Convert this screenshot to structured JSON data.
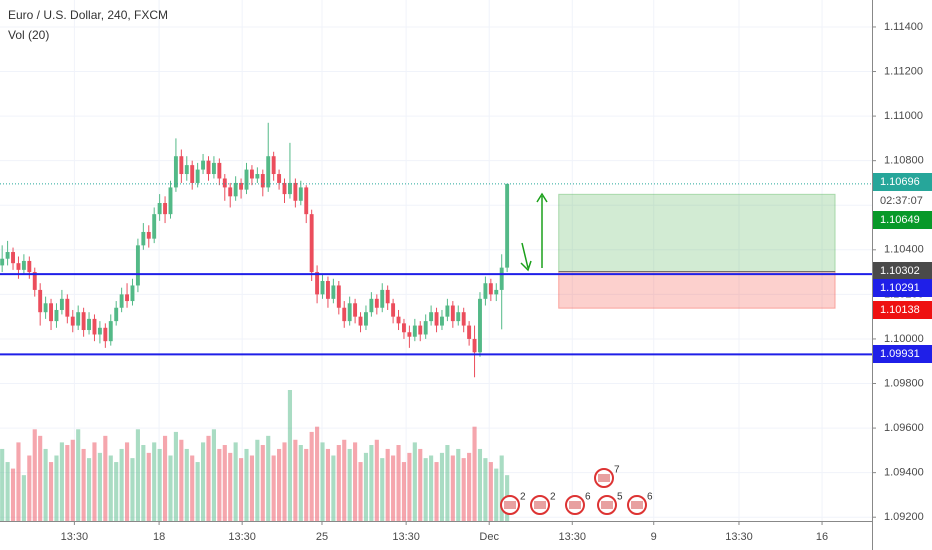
{
  "chart_data": {
    "type": "candlestick",
    "title": "Euro / U.S. Dollar, 240, FXCM",
    "subtitle": "Vol (20)",
    "up_color": "#53b987",
    "down_color": "#eb4d5c",
    "xlim": [
      -0.4,
      160.2
    ],
    "ylim": [
      1.09183,
      1.11521
    ],
    "vlim": [
      0,
      100
    ],
    "grid": true,
    "xticks": [
      {
        "value": 13.3,
        "label": "13:30"
      },
      {
        "value": 28.9,
        "label": "18"
      },
      {
        "value": 44.2,
        "label": "13:30"
      },
      {
        "value": 58.9,
        "label": "25"
      },
      {
        "value": 74.4,
        "label": "13:30"
      },
      {
        "value": 89.7,
        "label": "Dec"
      },
      {
        "value": 105,
        "label": "13:30"
      },
      {
        "value": 120,
        "label": "9"
      },
      {
        "value": 135.7,
        "label": "13:30"
      },
      {
        "value": 151,
        "label": "16"
      }
    ],
    "yticks": [
      {
        "value": 1.092,
        "label": "1.09200"
      },
      {
        "value": 1.094,
        "label": "1.09400"
      },
      {
        "value": 1.096,
        "label": "1.09600"
      },
      {
        "value": 1.098,
        "label": "1.09800"
      },
      {
        "value": 1.1,
        "label": "1.10000"
      },
      {
        "value": 1.102,
        "label": "1.10200"
      },
      {
        "value": 1.104,
        "label": "1.10400"
      },
      {
        "value": 1.106,
        "label": "1.10600"
      },
      {
        "value": 1.108,
        "label": "1.10800"
      },
      {
        "value": 1.11,
        "label": "1.11000"
      },
      {
        "value": 1.112,
        "label": "1.11200"
      },
      {
        "value": 1.114,
        "label": "1.11400"
      }
    ],
    "ohlc": [
      [
        1.1033,
        1.1042,
        1.103,
        1.1036
      ],
      [
        1.1036,
        1.1044,
        1.1033,
        1.1039
      ],
      [
        1.1039,
        1.1041,
        1.1031,
        1.1034
      ],
      [
        1.1034,
        1.1037,
        1.1027,
        1.1031
      ],
      [
        1.1031,
        1.1038,
        1.1029,
        1.1035
      ],
      [
        1.1035,
        1.1037,
        1.1027,
        1.103
      ],
      [
        1.103,
        1.1032,
        1.1019,
        1.1022
      ],
      [
        1.1022,
        1.1025,
        1.1006,
        1.1012
      ],
      [
        1.1012,
        1.1019,
        1.1009,
        1.1016
      ],
      [
        1.1016,
        1.1018,
        1.1004,
        1.1008
      ],
      [
        1.1008,
        1.1016,
        1.1005,
        1.1013
      ],
      [
        1.1013,
        1.1022,
        1.1011,
        1.1018
      ],
      [
        1.1018,
        1.102,
        1.1007,
        1.101
      ],
      [
        1.101,
        1.1013,
        1.1003,
        1.1006
      ],
      [
        1.1006,
        1.1015,
        1.1004,
        1.1012
      ],
      [
        1.1012,
        1.1014,
        1.1001,
        1.1004
      ],
      [
        1.1004,
        1.1012,
        1.1002,
        1.1009
      ],
      [
        1.1009,
        1.1011,
        1.0999,
        1.1002
      ],
      [
        1.1002,
        1.1008,
        1.0998,
        1.1005
      ],
      [
        1.1005,
        1.1007,
        1.0996,
        1.0999
      ],
      [
        1.0999,
        1.1011,
        1.0997,
        1.1008
      ],
      [
        1.1008,
        1.1017,
        1.1006,
        1.1014
      ],
      [
        1.1014,
        1.1023,
        1.1012,
        1.102
      ],
      [
        1.102,
        1.1025,
        1.1014,
        1.1017
      ],
      [
        1.1017,
        1.1027,
        1.1015,
        1.1024
      ],
      [
        1.1024,
        1.1045,
        1.1021,
        1.1042
      ],
      [
        1.1042,
        1.1052,
        1.104,
        1.1048
      ],
      [
        1.1048,
        1.1051,
        1.1041,
        1.1045
      ],
      [
        1.1045,
        1.1059,
        1.1043,
        1.1056
      ],
      [
        1.1056,
        1.1065,
        1.1053,
        1.1061
      ],
      [
        1.1061,
        1.1064,
        1.1052,
        1.1056
      ],
      [
        1.1056,
        1.1071,
        1.1054,
        1.1068
      ],
      [
        1.1068,
        1.109,
        1.1066,
        1.1082
      ],
      [
        1.1082,
        1.1085,
        1.107,
        1.1074
      ],
      [
        1.1074,
        1.1082,
        1.1071,
        1.1078
      ],
      [
        1.1078,
        1.108,
        1.1067,
        1.107
      ],
      [
        1.107,
        1.1079,
        1.1068,
        1.1076
      ],
      [
        1.1076,
        1.1083,
        1.1074,
        1.108
      ],
      [
        1.108,
        1.1082,
        1.1071,
        1.1074
      ],
      [
        1.1074,
        1.1082,
        1.1072,
        1.1079
      ],
      [
        1.1079,
        1.1081,
        1.1069,
        1.1072
      ],
      [
        1.1072,
        1.1074,
        1.1062,
        1.1068
      ],
      [
        1.1068,
        1.107,
        1.1059,
        1.1064
      ],
      [
        1.1064,
        1.1073,
        1.1062,
        1.107
      ],
      [
        1.107,
        1.1072,
        1.1063,
        1.1067
      ],
      [
        1.1067,
        1.1079,
        1.1065,
        1.1076
      ],
      [
        1.1076,
        1.1078,
        1.1069,
        1.1072
      ],
      [
        1.1072,
        1.1077,
        1.107,
        1.1074
      ],
      [
        1.1074,
        1.1076,
        1.1064,
        1.1068
      ],
      [
        1.1068,
        1.1097,
        1.1066,
        1.1082
      ],
      [
        1.1082,
        1.1084,
        1.1071,
        1.1074
      ],
      [
        1.1074,
        1.1076,
        1.1067,
        1.107
      ],
      [
        1.107,
        1.1072,
        1.1061,
        1.1065
      ],
      [
        1.1065,
        1.1088,
        1.1063,
        1.107
      ],
      [
        1.107,
        1.1072,
        1.1059,
        1.1062
      ],
      [
        1.1062,
        1.1071,
        1.106,
        1.1068
      ],
      [
        1.1068,
        1.1069,
        1.1052,
        1.1056
      ],
      [
        1.1056,
        1.1058,
        1.1026,
        1.103
      ],
      [
        1.103,
        1.1033,
        1.1016,
        1.102
      ],
      [
        1.102,
        1.1029,
        1.1018,
        1.1026
      ],
      [
        1.1026,
        1.1028,
        1.1014,
        1.1018
      ],
      [
        1.1018,
        1.1027,
        1.1016,
        1.1024
      ],
      [
        1.1024,
        1.1026,
        1.1011,
        1.1014
      ],
      [
        1.1014,
        1.1017,
        1.1005,
        1.1008
      ],
      [
        1.1008,
        1.1019,
        1.1006,
        1.1016
      ],
      [
        1.1016,
        1.1018,
        1.1007,
        1.101
      ],
      [
        1.101,
        1.1012,
        1.1003,
        1.1006
      ],
      [
        1.1006,
        1.1015,
        1.1004,
        1.1012
      ],
      [
        1.1012,
        1.1021,
        1.101,
        1.1018
      ],
      [
        1.1018,
        1.102,
        1.1011,
        1.1014
      ],
      [
        1.1014,
        1.1025,
        1.1012,
        1.1022
      ],
      [
        1.1022,
        1.1024,
        1.1013,
        1.1016
      ],
      [
        1.1016,
        1.1018,
        1.1007,
        1.101
      ],
      [
        1.101,
        1.1013,
        1.1004,
        1.1007
      ],
      [
        1.1007,
        1.1009,
        1.1,
        1.1003
      ],
      [
        1.1003,
        1.1006,
        1.0996,
        1.1001
      ],
      [
        1.1001,
        1.1009,
        1.0999,
        1.1006
      ],
      [
        1.1006,
        1.1008,
        1.0999,
        1.1002
      ],
      [
        1.1002,
        1.1011,
        1.1,
        1.1008
      ],
      [
        1.1008,
        1.1015,
        1.1006,
        1.1012
      ],
      [
        1.1012,
        1.1014,
        1.1003,
        1.1006
      ],
      [
        1.1006,
        1.1013,
        1.1004,
        1.101
      ],
      [
        1.101,
        1.1018,
        1.1008,
        1.1015
      ],
      [
        1.1015,
        1.1017,
        1.1005,
        1.1008
      ],
      [
        1.1008,
        1.1015,
        1.1006,
        1.1012
      ],
      [
        1.1012,
        1.1014,
        1.1003,
        1.1006
      ],
      [
        1.1006,
        1.1008,
        1.0997,
        1.1
      ],
      [
        1.1,
        1.1006,
        1.09828,
        1.0994
      ],
      [
        1.0994,
        1.1021,
        1.0992,
        1.1018
      ],
      [
        1.1018,
        1.1028,
        1.1015,
        1.1025
      ],
      [
        1.1025,
        1.1027,
        1.1017,
        1.102
      ],
      [
        1.102,
        1.1025,
        1.1017,
        1.1022
      ],
      [
        1.1022,
        1.1038,
        1.10043,
        1.1032
      ],
      [
        1.1032,
        1.10696,
        1.103,
        1.10696
      ]
    ],
    "volume": [
      55,
      45,
      40,
      60,
      35,
      50,
      70,
      65,
      55,
      45,
      50,
      60,
      58,
      62,
      70,
      55,
      48,
      60,
      52,
      65,
      50,
      45,
      55,
      60,
      48,
      70,
      58,
      52,
      60,
      55,
      65,
      50,
      68,
      62,
      55,
      50,
      45,
      60,
      65,
      70,
      55,
      58,
      52,
      60,
      48,
      55,
      50,
      62,
      58,
      65,
      50,
      55,
      60,
      100,
      62,
      58,
      55,
      68,
      72,
      60,
      55,
      50,
      58,
      62,
      55,
      60,
      45,
      52,
      58,
      62,
      48,
      55,
      50,
      58,
      45,
      52,
      60,
      55,
      48,
      50,
      45,
      52,
      58,
      50,
      55,
      48,
      52,
      72,
      55,
      48,
      45,
      40,
      50,
      35
    ],
    "price_labels": [
      {
        "value": 1.10696,
        "label": "1.10696",
        "color": "#26a69a"
      },
      {
        "value": 1.10649,
        "label": "1.10649",
        "color": "#089929"
      },
      {
        "value": 1.10302,
        "label": "1.10302",
        "color": "#4a4a4a"
      },
      {
        "value": 1.10291,
        "label": "1.10291",
        "color": "#1f1fe8"
      },
      {
        "value": 1.10138,
        "label": "1.10138",
        "color": "#ee1111"
      },
      {
        "value": 1.09931,
        "label": "1.09931",
        "color": "#1f1fe8"
      }
    ],
    "countdown": "02:37:07",
    "position_start": 102.5,
    "position_end": 153.4,
    "events": [
      {
        "label": "2"
      },
      {
        "label": "2"
      },
      {
        "label": "6"
      },
      {
        "label": "7"
      },
      {
        "label": "5"
      },
      {
        "label": "6"
      }
    ]
  }
}
